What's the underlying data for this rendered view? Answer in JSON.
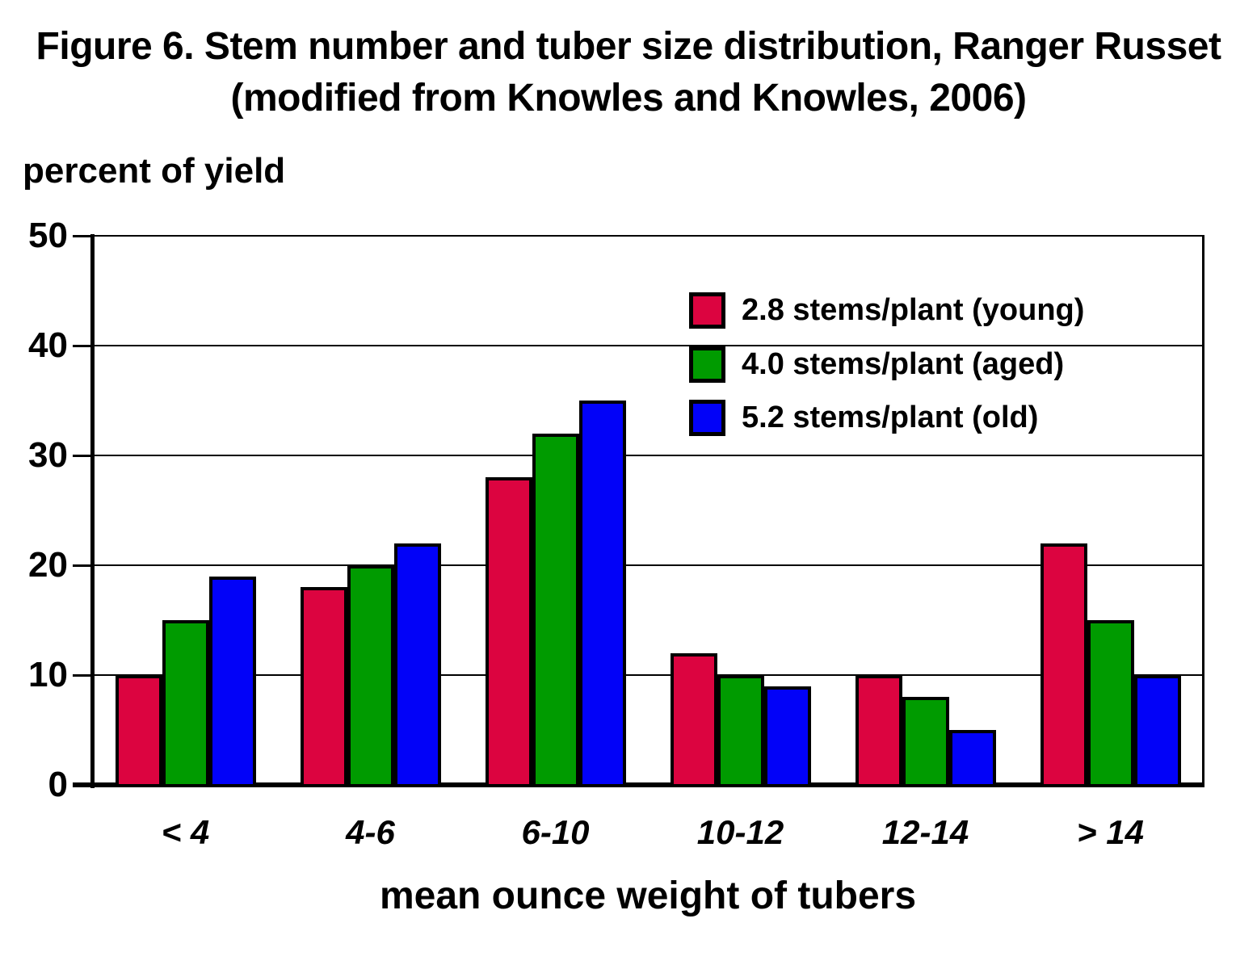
{
  "figure": {
    "title_line1": "Figure 6. Stem number and tuber size distribution, Ranger Russet",
    "title_line2": "(modified from Knowles and Knowles, 2006)"
  },
  "chart_data": {
    "type": "bar",
    "title": "Figure 6. Stem number and tuber size distribution, Ranger Russet (modified from Knowles and Knowles, 2006)",
    "ylabel": "percent of yield",
    "xlabel": "mean ounce weight of tubers",
    "categories": [
      "< 4",
      "4-6",
      "6-10",
      "10-12",
      "12-14",
      "> 14"
    ],
    "series": [
      {
        "name": "2.8 stems/plant (young)",
        "color": "#DC0440",
        "values": [
          10,
          18,
          28,
          12,
          10,
          22
        ]
      },
      {
        "name": "4.0 stems/plant (aged)",
        "color": "#009B00",
        "values": [
          15,
          20,
          32,
          10,
          8,
          15
        ]
      },
      {
        "name": "5.2 stems/plant (old)",
        "color": "#0202F8",
        "values": [
          19,
          22,
          35,
          9,
          5,
          10
        ]
      }
    ],
    "ylim": [
      0,
      50
    ],
    "y_ticks": [
      0,
      10,
      20,
      30,
      40,
      50
    ],
    "grid": true,
    "legend_position": "upper-right-inside",
    "bar_outline_color": "#000000",
    "axis_color": "#000000"
  }
}
